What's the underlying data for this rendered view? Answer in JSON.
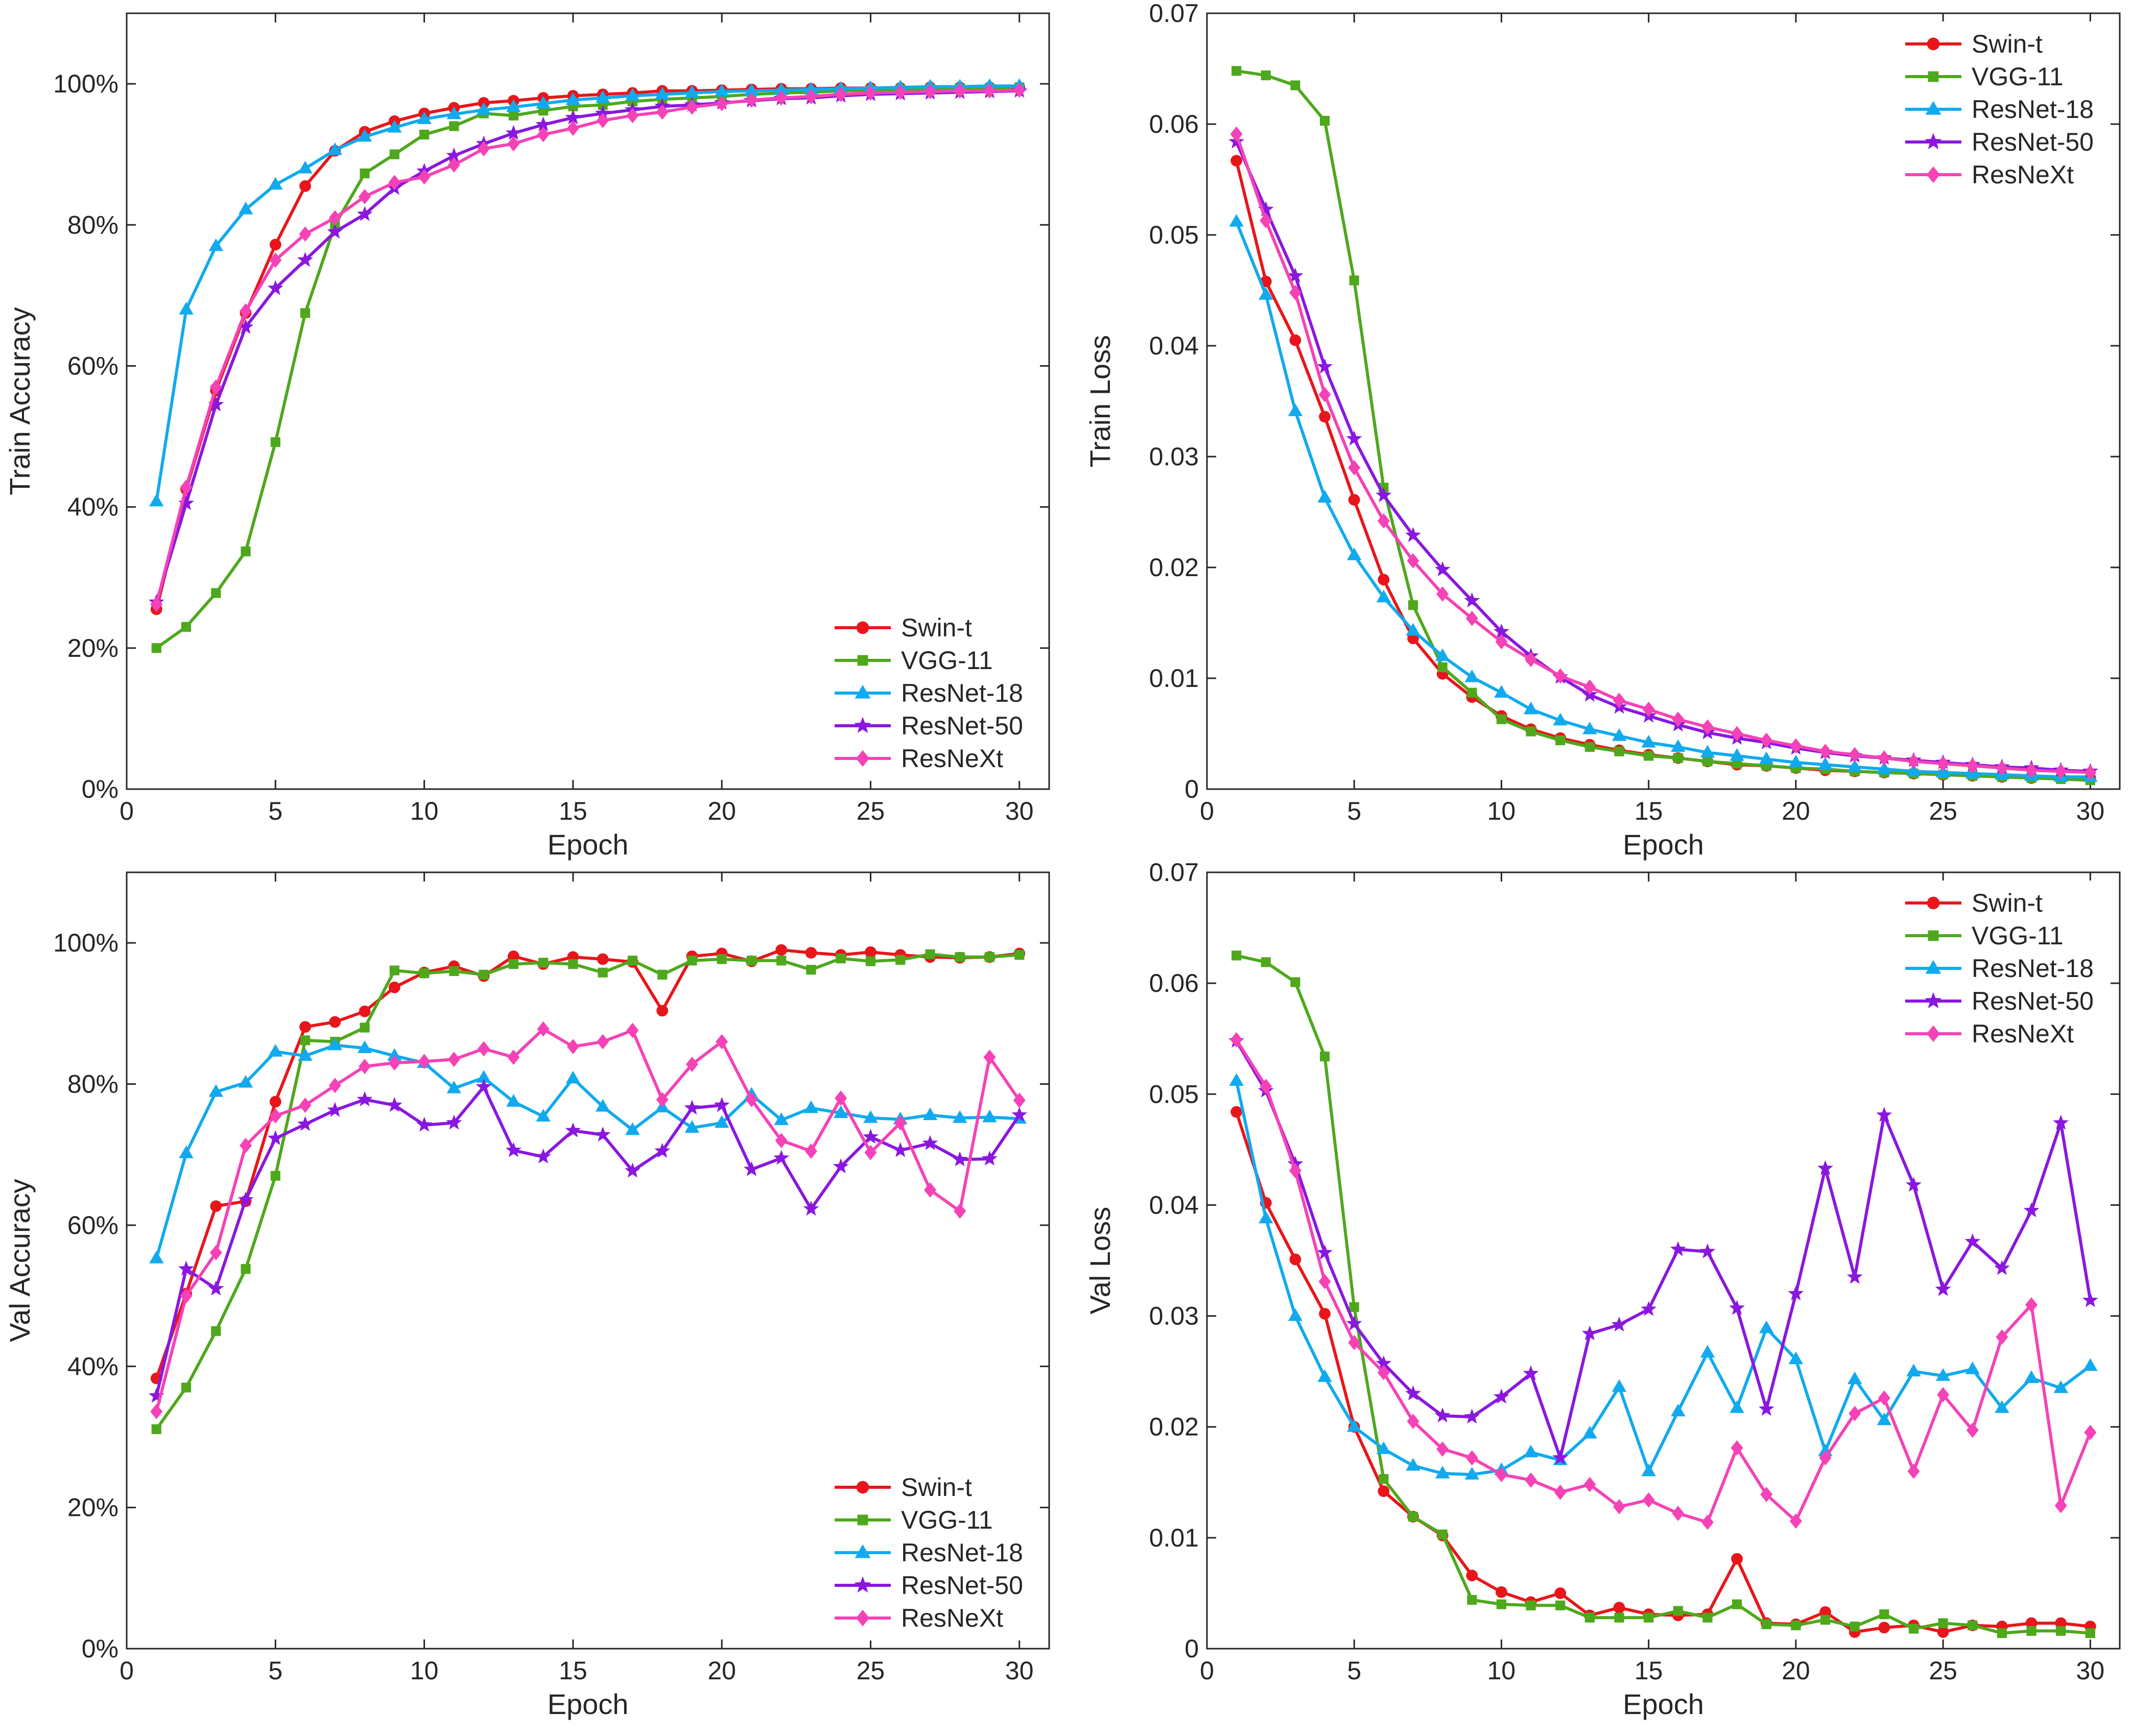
{
  "chart_data": [
    {
      "type": "line",
      "panel": "top-left",
      "title": "",
      "xlabel": "Epoch",
      "ylabel": "Train Accuracy",
      "xlim": [
        0,
        31
      ],
      "ylim": [
        0,
        1.1
      ],
      "xticks": [
        0,
        5,
        10,
        15,
        20,
        25,
        30
      ],
      "xtick_labels": [
        "0",
        "5",
        "10",
        "15",
        "20",
        "25",
        "30"
      ],
      "yticks": [
        0,
        0.2,
        0.4,
        0.6,
        0.8,
        1.0
      ],
      "ytick_labels": [
        "0%",
        "20%",
        "40%",
        "60%",
        "80%",
        "100%"
      ],
      "legend_position": "bottom-right",
      "x": [
        1,
        2,
        3,
        4,
        5,
        6,
        7,
        8,
        9,
        10,
        11,
        12,
        13,
        14,
        15,
        16,
        17,
        18,
        19,
        20,
        21,
        22,
        23,
        24,
        25,
        26,
        27,
        28,
        29,
        30
      ],
      "series": [
        {
          "name": "Swin-t",
          "color": "#e8161b",
          "marker": "circle",
          "values": [
            0.255,
            0.425,
            0.565,
            0.675,
            0.772,
            0.855,
            0.905,
            0.932,
            0.947,
            0.958,
            0.966,
            0.973,
            0.976,
            0.98,
            0.983,
            0.985,
            0.987,
            0.99,
            0.99,
            0.991,
            0.992,
            0.993,
            0.993,
            0.994,
            0.994,
            0.994,
            0.995,
            0.995,
            0.995,
            0.995
          ]
        },
        {
          "name": "VGG-11",
          "color": "#4ea81c",
          "marker": "square",
          "values": [
            0.2,
            0.23,
            0.278,
            0.337,
            0.492,
            0.675,
            0.8,
            0.873,
            0.9,
            0.928,
            0.94,
            0.958,
            0.955,
            0.962,
            0.968,
            0.97,
            0.975,
            0.978,
            0.98,
            0.982,
            0.985,
            0.987,
            0.988,
            0.99,
            0.991,
            0.992,
            0.993,
            0.994,
            0.994,
            0.995
          ]
        },
        {
          "name": "ResNet-18",
          "color": "#11aaee",
          "marker": "triangle",
          "values": [
            0.408,
            0.68,
            0.77,
            0.822,
            0.857,
            0.88,
            0.906,
            0.925,
            0.938,
            0.95,
            0.957,
            0.963,
            0.967,
            0.972,
            0.977,
            0.98,
            0.983,
            0.985,
            0.987,
            0.989,
            0.99,
            0.991,
            0.992,
            0.993,
            0.994,
            0.995,
            0.996,
            0.996,
            0.997,
            0.997
          ]
        },
        {
          "name": "ResNet-50",
          "color": "#8a17e0",
          "marker": "star",
          "values": [
            0.265,
            0.405,
            0.545,
            0.655,
            0.71,
            0.75,
            0.79,
            0.815,
            0.852,
            0.876,
            0.898,
            0.915,
            0.93,
            0.942,
            0.952,
            0.958,
            0.963,
            0.968,
            0.97,
            0.973,
            0.976,
            0.979,
            0.98,
            0.983,
            0.985,
            0.986,
            0.987,
            0.988,
            0.989,
            0.99
          ]
        },
        {
          "name": "ResNeXt",
          "color": "#f542b6",
          "marker": "diamond",
          "values": [
            0.262,
            0.428,
            0.57,
            0.678,
            0.75,
            0.787,
            0.81,
            0.84,
            0.86,
            0.868,
            0.885,
            0.908,
            0.915,
            0.928,
            0.937,
            0.948,
            0.955,
            0.96,
            0.967,
            0.972,
            0.977,
            0.98,
            0.982,
            0.985,
            0.987,
            0.988,
            0.989,
            0.99,
            0.99,
            0.991
          ]
        }
      ]
    },
    {
      "type": "line",
      "panel": "top-right",
      "title": "",
      "xlabel": "Epoch",
      "ylabel": "Train Loss",
      "xlim": [
        0,
        31
      ],
      "ylim": [
        0,
        0.07
      ],
      "xticks": [
        0,
        5,
        10,
        15,
        20,
        25,
        30
      ],
      "xtick_labels": [
        "0",
        "5",
        "10",
        "15",
        "20",
        "25",
        "30"
      ],
      "yticks": [
        0,
        0.01,
        0.02,
        0.03,
        0.04,
        0.05,
        0.06,
        0.07
      ],
      "ytick_labels": [
        "0",
        "0.01",
        "0.02",
        "0.03",
        "0.04",
        "0.05",
        "0.06",
        "0.07"
      ],
      "legend_position": "top-right",
      "x": [
        1,
        2,
        3,
        4,
        5,
        6,
        7,
        8,
        9,
        10,
        11,
        12,
        13,
        14,
        15,
        16,
        17,
        18,
        19,
        20,
        21,
        22,
        23,
        24,
        25,
        26,
        27,
        28,
        29,
        30
      ],
      "series": [
        {
          "name": "Swin-t",
          "color": "#e8161b",
          "marker": "circle",
          "values": [
            0.0567,
            0.0458,
            0.0405,
            0.0336,
            0.0261,
            0.0189,
            0.0136,
            0.0104,
            0.0083,
            0.0066,
            0.0054,
            0.0046,
            0.004,
            0.0035,
            0.0031,
            0.0028,
            0.0025,
            0.0022,
            0.0021,
            0.0019,
            0.0017,
            0.0016,
            0.0015,
            0.0014,
            0.0013,
            0.0012,
            0.0011,
            0.001,
            0.001,
            0.001
          ]
        },
        {
          "name": "VGG-11",
          "color": "#4ea81c",
          "marker": "square",
          "values": [
            0.0648,
            0.0644,
            0.0635,
            0.0603,
            0.0459,
            0.0272,
            0.0166,
            0.011,
            0.0087,
            0.0063,
            0.0052,
            0.0044,
            0.0038,
            0.0034,
            0.003,
            0.0028,
            0.0025,
            0.0023,
            0.0021,
            0.0019,
            0.0018,
            0.0016,
            0.0015,
            0.0014,
            0.0013,
            0.0012,
            0.0011,
            0.001,
            0.0009,
            0.0008
          ]
        },
        {
          "name": "ResNet-18",
          "color": "#11aaee",
          "marker": "triangle",
          "values": [
            0.0512,
            0.0446,
            0.0341,
            0.0263,
            0.0211,
            0.0173,
            0.0143,
            0.012,
            0.0101,
            0.0087,
            0.0072,
            0.0062,
            0.0054,
            0.0048,
            0.0042,
            0.0038,
            0.0033,
            0.003,
            0.0027,
            0.0024,
            0.0022,
            0.002,
            0.0018,
            0.0016,
            0.0015,
            0.0014,
            0.0013,
            0.0012,
            0.0011,
            0.0011
          ]
        },
        {
          "name": "ResNet-50",
          "color": "#8a17e0",
          "marker": "star",
          "values": [
            0.0584,
            0.0523,
            0.0463,
            0.0381,
            0.0316,
            0.0265,
            0.0229,
            0.0198,
            0.017,
            0.0142,
            0.012,
            0.0101,
            0.0085,
            0.0074,
            0.0066,
            0.0058,
            0.0051,
            0.0046,
            0.0042,
            0.0037,
            0.0033,
            0.003,
            0.0028,
            0.0026,
            0.0024,
            0.0022,
            0.002,
            0.0019,
            0.0017,
            0.0016
          ]
        },
        {
          "name": "ResNeXt",
          "color": "#f542b6",
          "marker": "diamond",
          "values": [
            0.0591,
            0.0513,
            0.0448,
            0.0356,
            0.029,
            0.0242,
            0.0206,
            0.0176,
            0.0154,
            0.0133,
            0.0117,
            0.0102,
            0.0092,
            0.008,
            0.0072,
            0.0063,
            0.0056,
            0.005,
            0.0044,
            0.0039,
            0.0034,
            0.0031,
            0.0028,
            0.0025,
            0.0023,
            0.0021,
            0.0019,
            0.0017,
            0.0016,
            0.0015
          ]
        }
      ]
    },
    {
      "type": "line",
      "panel": "bottom-left",
      "title": "",
      "xlabel": "Epoch",
      "ylabel": "Val Accuracy",
      "xlim": [
        0,
        31
      ],
      "ylim": [
        0,
        1.1
      ],
      "xticks": [
        0,
        5,
        10,
        15,
        20,
        25,
        30
      ],
      "xtick_labels": [
        "0",
        "5",
        "10",
        "15",
        "20",
        "25",
        "30"
      ],
      "yticks": [
        0,
        0.2,
        0.4,
        0.6,
        0.8,
        1.0
      ],
      "ytick_labels": [
        "0%",
        "20%",
        "40%",
        "60%",
        "80%",
        "100%"
      ],
      "legend_position": "bottom-right",
      "x": [
        1,
        2,
        3,
        4,
        5,
        6,
        7,
        8,
        9,
        10,
        11,
        12,
        13,
        14,
        15,
        16,
        17,
        18,
        19,
        20,
        21,
        22,
        23,
        24,
        25,
        26,
        27,
        28,
        29,
        30
      ],
      "series": [
        {
          "name": "Swin-t",
          "color": "#e8161b",
          "marker": "circle",
          "values": [
            0.383,
            0.503,
            0.627,
            0.634,
            0.775,
            0.881,
            0.888,
            0.903,
            0.937,
            0.958,
            0.967,
            0.953,
            0.981,
            0.97,
            0.98,
            0.977,
            0.973,
            0.904,
            0.981,
            0.985,
            0.974,
            0.99,
            0.986,
            0.983,
            0.987,
            0.983,
            0.98,
            0.979,
            0.98,
            0.985
          ]
        },
        {
          "name": "VGG-11",
          "color": "#4ea81c",
          "marker": "square",
          "values": [
            0.311,
            0.37,
            0.45,
            0.538,
            0.67,
            0.862,
            0.86,
            0.88,
            0.961,
            0.957,
            0.96,
            0.955,
            0.97,
            0.972,
            0.97,
            0.958,
            0.975,
            0.955,
            0.975,
            0.977,
            0.975,
            0.975,
            0.962,
            0.978,
            0.974,
            0.976,
            0.984,
            0.98,
            0.98,
            0.983
          ]
        },
        {
          "name": "ResNet-18",
          "color": "#11aaee",
          "marker": "triangle",
          "values": [
            0.553,
            0.702,
            0.789,
            0.802,
            0.846,
            0.84,
            0.855,
            0.851,
            0.84,
            0.83,
            0.794,
            0.809,
            0.775,
            0.754,
            0.808,
            0.768,
            0.735,
            0.767,
            0.738,
            0.745,
            0.785,
            0.749,
            0.766,
            0.759,
            0.752,
            0.75,
            0.756,
            0.752,
            0.753,
            0.751
          ]
        },
        {
          "name": "ResNet-50",
          "color": "#8a17e0",
          "marker": "star",
          "values": [
            0.358,
            0.538,
            0.51,
            0.636,
            0.723,
            0.743,
            0.763,
            0.778,
            0.77,
            0.742,
            0.745,
            0.796,
            0.706,
            0.697,
            0.734,
            0.728,
            0.677,
            0.705,
            0.766,
            0.77,
            0.679,
            0.695,
            0.623,
            0.683,
            0.725,
            0.706,
            0.716,
            0.693,
            0.694,
            0.756
          ]
        },
        {
          "name": "ResNeXt",
          "color": "#f542b6",
          "marker": "diamond",
          "values": [
            0.336,
            0.5,
            0.561,
            0.713,
            0.755,
            0.77,
            0.798,
            0.825,
            0.83,
            0.832,
            0.835,
            0.85,
            0.838,
            0.878,
            0.853,
            0.86,
            0.876,
            0.778,
            0.828,
            0.86,
            0.778,
            0.72,
            0.705,
            0.78,
            0.703,
            0.745,
            0.65,
            0.62,
            0.838,
            0.777
          ]
        }
      ]
    },
    {
      "type": "line",
      "panel": "bottom-right",
      "title": "",
      "xlabel": "Epoch",
      "ylabel": "Val Loss",
      "xlim": [
        0,
        31
      ],
      "ylim": [
        0,
        0.07
      ],
      "xticks": [
        0,
        5,
        10,
        15,
        20,
        25,
        30
      ],
      "xtick_labels": [
        "0",
        "5",
        "10",
        "15",
        "20",
        "25",
        "30"
      ],
      "yticks": [
        0,
        0.01,
        0.02,
        0.03,
        0.04,
        0.05,
        0.06,
        0.07
      ],
      "ytick_labels": [
        "0",
        "0.01",
        "0.02",
        "0.03",
        "0.04",
        "0.05",
        "0.06",
        "0.07"
      ],
      "legend_position": "top-right",
      "x": [
        1,
        2,
        3,
        4,
        5,
        6,
        7,
        8,
        9,
        10,
        11,
        12,
        13,
        14,
        15,
        16,
        17,
        18,
        19,
        20,
        21,
        22,
        23,
        24,
        25,
        26,
        27,
        28,
        29,
        30
      ],
      "series": [
        {
          "name": "Swin-t",
          "color": "#e8161b",
          "marker": "circle",
          "values": [
            0.0484,
            0.0402,
            0.0351,
            0.0302,
            0.02,
            0.0142,
            0.0119,
            0.0102,
            0.0066,
            0.0051,
            0.0042,
            0.005,
            0.003,
            0.0037,
            0.0031,
            0.003,
            0.0031,
            0.0081,
            0.0023,
            0.0022,
            0.0033,
            0.0015,
            0.0019,
            0.0021,
            0.0015,
            0.0021,
            0.002,
            0.0023,
            0.0023,
            0.002
          ]
        },
        {
          "name": "VGG-11",
          "color": "#4ea81c",
          "marker": "square",
          "values": [
            0.0625,
            0.0619,
            0.0601,
            0.0534,
            0.0308,
            0.0153,
            0.0119,
            0.0103,
            0.0044,
            0.004,
            0.0039,
            0.0039,
            0.0028,
            0.0028,
            0.0028,
            0.0034,
            0.0028,
            0.004,
            0.0022,
            0.0021,
            0.0026,
            0.002,
            0.0031,
            0.0018,
            0.0023,
            0.0021,
            0.0014,
            0.0016,
            0.0016,
            0.0014
          ]
        },
        {
          "name": "ResNet-18",
          "color": "#11aaee",
          "marker": "triangle",
          "values": [
            0.0512,
            0.0388,
            0.03,
            0.0245,
            0.02,
            0.018,
            0.0165,
            0.0158,
            0.0157,
            0.0161,
            0.0177,
            0.017,
            0.0194,
            0.0236,
            0.016,
            0.0214,
            0.0267,
            0.0217,
            0.0289,
            0.0261,
            0.0178,
            0.0243,
            0.0206,
            0.025,
            0.0246,
            0.0252,
            0.0217,
            0.0244,
            0.0235,
            0.0255
          ]
        },
        {
          "name": "ResNet-50",
          "color": "#8a17e0",
          "marker": "star",
          "values": [
            0.0548,
            0.0503,
            0.0437,
            0.0357,
            0.0293,
            0.0257,
            0.023,
            0.021,
            0.0209,
            0.0227,
            0.0248,
            0.0172,
            0.0284,
            0.0292,
            0.0306,
            0.036,
            0.0358,
            0.0307,
            0.0216,
            0.032,
            0.0433,
            0.0335,
            0.0481,
            0.0418,
            0.0324,
            0.0367,
            0.0343,
            0.0395,
            0.0474,
            0.0314
          ]
        },
        {
          "name": "ResNeXt",
          "color": "#f542b6",
          "marker": "diamond",
          "values": [
            0.0549,
            0.0507,
            0.0431,
            0.0331,
            0.0276,
            0.0249,
            0.0205,
            0.018,
            0.0172,
            0.0157,
            0.0152,
            0.0141,
            0.0148,
            0.0128,
            0.0134,
            0.0122,
            0.0114,
            0.0181,
            0.0139,
            0.0115,
            0.0172,
            0.0212,
            0.0226,
            0.016,
            0.0229,
            0.0197,
            0.0281,
            0.031,
            0.0129,
            0.0195
          ]
        }
      ]
    }
  ]
}
